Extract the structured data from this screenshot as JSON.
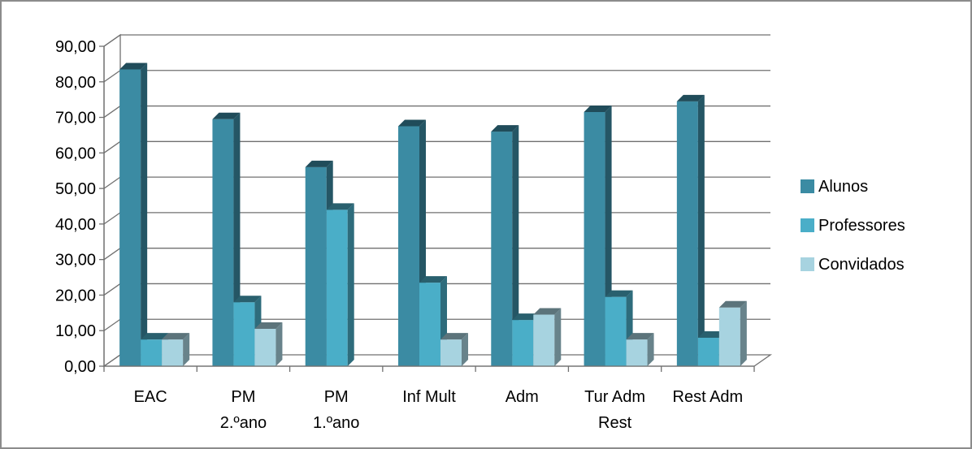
{
  "chart_data": {
    "type": "bar",
    "categories": [
      [
        "EAC"
      ],
      [
        "PM",
        "2.ºano"
      ],
      [
        "PM",
        "1.ºano"
      ],
      [
        "Inf Mult"
      ],
      [
        "Adm"
      ],
      [
        "Tur  Adm",
        "Rest"
      ],
      [
        "Rest Adm"
      ]
    ],
    "series": [
      {
        "name": "Alunos",
        "values": [
          83.5,
          69.5,
          56.0,
          67.5,
          66.0,
          71.5,
          74.5
        ]
      },
      {
        "name": "Professores",
        "values": [
          7.5,
          18.0,
          44.0,
          23.5,
          13.0,
          19.5,
          8.0
        ]
      },
      {
        "name": "Convidados",
        "values": [
          7.5,
          10.5,
          0,
          7.5,
          14.5,
          7.5,
          16.5
        ]
      }
    ],
    "y_ticks": [
      "0,00",
      "10,00",
      "20,00",
      "30,00",
      "40,00",
      "50,00",
      "60,00",
      "70,00",
      "80,00",
      "90,00"
    ],
    "ylim": [
      0,
      90
    ],
    "legend_position": "right",
    "grid": true,
    "colors": {
      "Alunos": "#3b8ba3",
      "Professores": "#4aaec8",
      "Convidados": "#a7d3e0",
      "grid": "#707070",
      "frame": "#8c8c8c"
    }
  }
}
